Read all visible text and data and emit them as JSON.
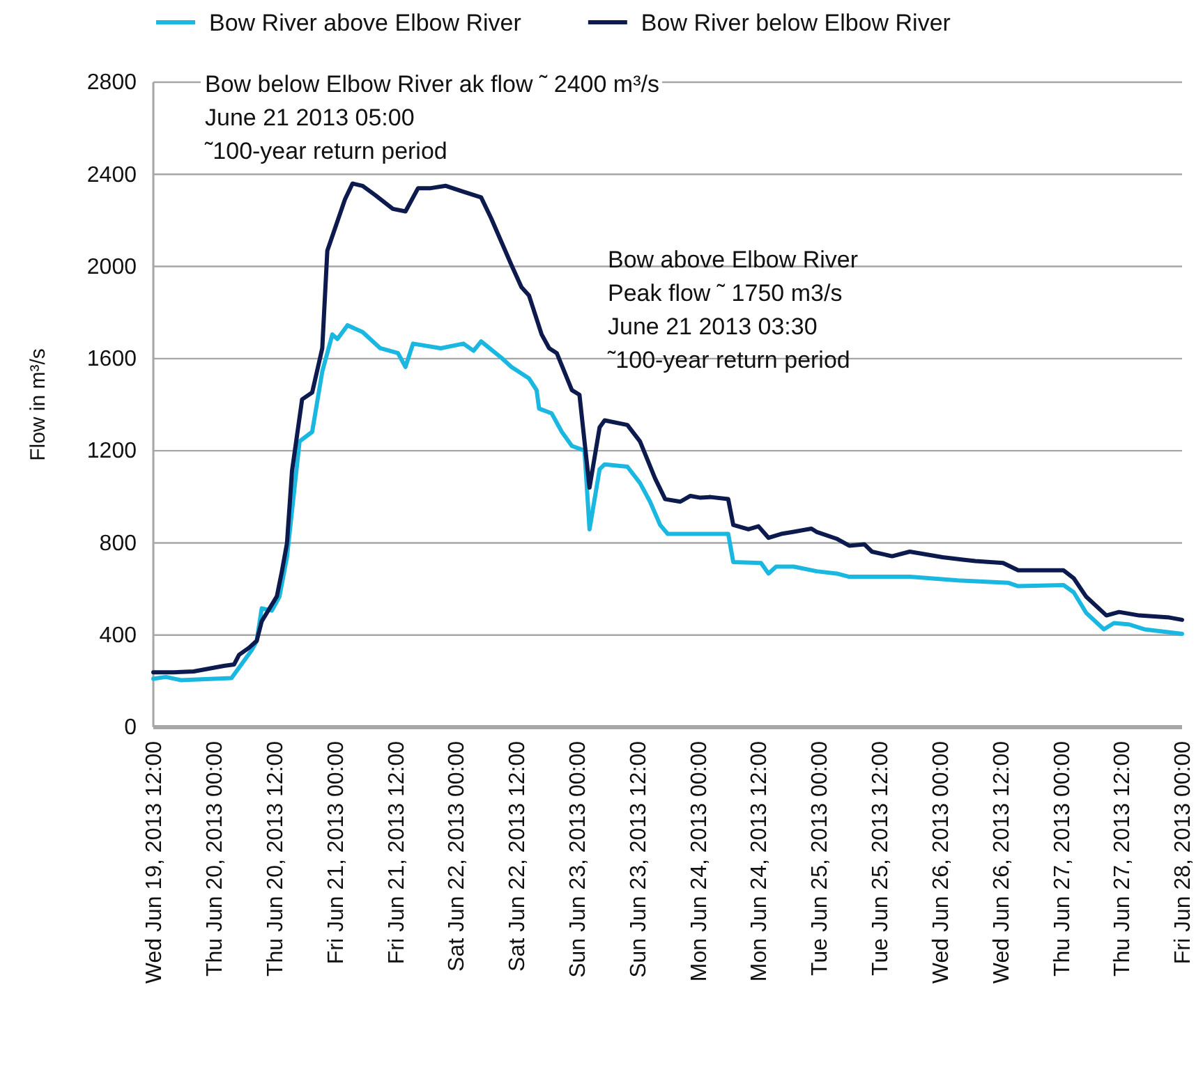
{
  "chart_data": {
    "type": "line",
    "ylabel": "Flow in  m³/s",
    "legend": "top",
    "grid": "y",
    "line_style": "solid",
    "marker": "none",
    "ylim": [
      0,
      2800
    ],
    "yticks": [
      0,
      400,
      800,
      1200,
      1600,
      2000,
      2400,
      2800
    ],
    "xlim": [
      "2013-06-19T12:00",
      "2013-06-28T00:00"
    ],
    "xticks": [
      {
        "value": "2013-06-19T12:00",
        "label": "Wed Jun 19, 2013 12:00"
      },
      {
        "value": "2013-06-20T00:00",
        "label": "Thu Jun 20, 2013 00:00"
      },
      {
        "value": "2013-06-20T12:00",
        "label": "Thu Jun 20, 2013 12:00"
      },
      {
        "value": "2013-06-21T00:00",
        "label": "Fri Jun 21, 2013 00:00"
      },
      {
        "value": "2013-06-21T12:00",
        "label": "Fri Jun 21, 2013 12:00"
      },
      {
        "value": "2013-06-22T00:00",
        "label": "Sat Jun 22, 2013 00:00"
      },
      {
        "value": "2013-06-22T12:00",
        "label": "Sat Jun 22, 2013 12:00"
      },
      {
        "value": "2013-06-23T00:00",
        "label": "Sun Jun 23, 2013 00:00"
      },
      {
        "value": "2013-06-23T12:00",
        "label": "Sun Jun 23, 2013 12:00"
      },
      {
        "value": "2013-06-24T00:00",
        "label": "Mon Jun 24, 2013 00:00"
      },
      {
        "value": "2013-06-24T12:00",
        "label": "Mon Jun 24, 2013 12:00"
      },
      {
        "value": "2013-06-25T00:00",
        "label": "Tue Jun 25, 2013 00:00"
      },
      {
        "value": "2013-06-25T12:00",
        "label": "Tue Jun 25, 2013 12:00"
      },
      {
        "value": "2013-06-26T00:00",
        "label": "Wed Jun 26, 2013 00:00"
      },
      {
        "value": "2013-06-26T12:00",
        "label": "Wed Jun 26, 2013 12:00"
      },
      {
        "value": "2013-06-27T00:00",
        "label": "Thu Jun 27, 2013 00:00"
      },
      {
        "value": "2013-06-27T12:00",
        "label": "Thu Jun 27, 2013 12:00"
      },
      {
        "value": "2013-06-28T00:00",
        "label": "Fri Jun 28, 2013 00:00"
      }
    ],
    "annotations": [
      "Bow below Elbow River ak flow ˜ 2400 m³/s\nJune 21 2013 05:00\n˜100-year return period",
      "Bow above Elbow River\nPeak flow ˜ 1750 m3/s\nJune 21 2013 03:30\n˜100-year return period"
    ],
    "series": [
      {
        "name": "Bow River above Elbow River",
        "color": "#1ab7e0",
        "x": [
          "2013-06-19T12:00",
          "2013-06-19T14:30",
          "2013-06-19T17:30",
          "2013-06-20T03:30",
          "2013-06-20T07:30",
          "2013-06-20T08:30",
          "2013-06-20T09:30",
          "2013-06-20T11:30",
          "2013-06-20T13:00",
          "2013-06-20T14:30",
          "2013-06-20T17:00",
          "2013-06-20T19:30",
          "2013-06-20T21:30",
          "2013-06-20T23:30",
          "2013-06-21T00:30",
          "2013-06-21T02:30",
          "2013-06-21T05:30",
          "2013-06-21T09:00",
          "2013-06-21T12:30",
          "2013-06-21T14:00",
          "2013-06-21T15:30",
          "2013-06-21T21:00",
          "2013-06-22T01:30",
          "2013-06-22T03:30",
          "2013-06-22T05:00",
          "2013-06-22T09:00",
          "2013-06-22T11:00",
          "2013-06-22T14:30",
          "2013-06-22T16:00",
          "2013-06-22T16:30",
          "2013-06-22T19:00",
          "2013-06-22T21:00",
          "2013-06-22T23:00",
          "2013-06-23T01:30",
          "2013-06-23T02:30",
          "2013-06-23T04:30",
          "2013-06-23T05:30",
          "2013-06-23T10:00",
          "2013-06-23T12:30",
          "2013-06-23T14:30",
          "2013-06-23T16:30",
          "2013-06-23T18:00",
          "2013-06-24T06:00",
          "2013-06-24T07:00",
          "2013-06-24T12:30",
          "2013-06-24T14:00",
          "2013-06-24T15:30",
          "2013-06-24T19:00",
          "2013-06-24T23:30",
          "2013-06-25T03:30",
          "2013-06-25T06:00",
          "2013-06-25T18:00",
          "2013-06-26T03:30",
          "2013-06-26T13:30",
          "2013-06-26T15:30",
          "2013-06-27T00:30",
          "2013-06-27T02:30",
          "2013-06-27T05:00",
          "2013-06-27T08:30",
          "2013-06-27T10:30",
          "2013-06-27T13:30",
          "2013-06-27T16:30",
          "2013-06-28T00:00"
        ],
        "values": [
          210,
          218,
          204,
          213,
          334,
          375,
          516,
          506,
          566,
          738,
          1241,
          1282,
          1544,
          1705,
          1685,
          1745,
          1715,
          1645,
          1624,
          1564,
          1665,
          1645,
          1665,
          1634,
          1675,
          1604,
          1564,
          1514,
          1463,
          1383,
          1362,
          1282,
          1221,
          1201,
          859,
          1120,
          1141,
          1131,
          1060,
          979,
          878,
          839,
          839,
          717,
          713,
          667,
          697,
          697,
          677,
          667,
          653,
          653,
          637,
          627,
          612,
          617,
          586,
          496,
          425,
          452,
          446,
          425,
          405
        ]
      },
      {
        "name": "Bow River below Elbow River",
        "color": "#0c1a4e",
        "x": [
          "2013-06-19T12:00",
          "2013-06-19T16:00",
          "2013-06-19T20:00",
          "2013-06-19T23:00",
          "2013-06-20T02:00",
          "2013-06-20T04:00",
          "2013-06-20T05:00",
          "2013-06-20T07:00",
          "2013-06-20T08:30",
          "2013-06-20T09:30",
          "2013-06-20T10:30",
          "2013-06-20T12:30",
          "2013-06-20T13:30",
          "2013-06-20T14:30",
          "2013-06-20T15:30",
          "2013-06-20T17:30",
          "2013-06-20T19:30",
          "2013-06-20T21:30",
          "2013-06-20T22:30",
          "2013-06-21T02:00",
          "2013-06-21T03:30",
          "2013-06-21T05:30",
          "2013-06-21T08:00",
          "2013-06-21T11:30",
          "2013-06-21T14:00",
          "2013-06-21T16:30",
          "2013-06-21T19:00",
          "2013-06-21T22:00",
          "2013-06-22T01:00",
          "2013-06-22T05:00",
          "2013-06-22T07:00",
          "2013-06-22T11:00",
          "2013-06-22T13:00",
          "2013-06-22T14:30",
          "2013-06-22T17:00",
          "2013-06-22T18:30",
          "2013-06-22T20:00",
          "2013-06-22T23:00",
          "2013-06-23T00:30",
          "2013-06-23T02:30",
          "2013-06-23T04:30",
          "2013-06-23T05:30",
          "2013-06-23T10:00",
          "2013-06-23T12:30",
          "2013-06-23T15:30",
          "2013-06-23T17:30",
          "2013-06-23T20:30",
          "2013-06-23T22:30",
          "2013-06-24T00:30",
          "2013-06-24T02:30",
          "2013-06-24T06:00",
          "2013-06-24T07:00",
          "2013-06-24T10:00",
          "2013-06-24T12:00",
          "2013-06-24T14:00",
          "2013-06-24T16:30",
          "2013-06-24T19:00",
          "2013-06-24T22:30",
          "2013-06-24T23:30",
          "2013-06-25T03:30",
          "2013-06-25T06:00",
          "2013-06-25T09:00",
          "2013-06-25T10:30",
          "2013-06-25T14:30",
          "2013-06-25T18:00",
          "2013-06-26T00:30",
          "2013-06-26T04:30",
          "2013-06-26T07:00",
          "2013-06-26T12:30",
          "2013-06-26T15:30",
          "2013-06-27T00:30",
          "2013-06-27T02:30",
          "2013-06-27T05:00",
          "2013-06-27T09:00",
          "2013-06-27T11:30",
          "2013-06-27T15:30",
          "2013-06-27T21:30",
          "2013-06-28T00:00"
        ],
        "values": [
          238,
          238,
          242,
          254,
          266,
          272,
          314,
          345,
          375,
          460,
          496,
          568,
          677,
          798,
          1112,
          1423,
          1453,
          1645,
          2068,
          2291,
          2360,
          2350,
          2310,
          2250,
          2239,
          2340,
          2340,
          2350,
          2328,
          2300,
          2209,
          2007,
          1910,
          1874,
          1705,
          1645,
          1624,
          1463,
          1443,
          1040,
          1302,
          1332,
          1312,
          1241,
          1080,
          990,
          979,
          1004,
          996,
          999,
          990,
          878,
          859,
          872,
          822,
          839,
          848,
          862,
          848,
          818,
          788,
          794,
          762,
          742,
          762,
          738,
          727,
          721,
          713,
          681,
          681,
          647,
          566,
          485,
          500,
          485,
          476,
          466
        ]
      }
    ]
  }
}
